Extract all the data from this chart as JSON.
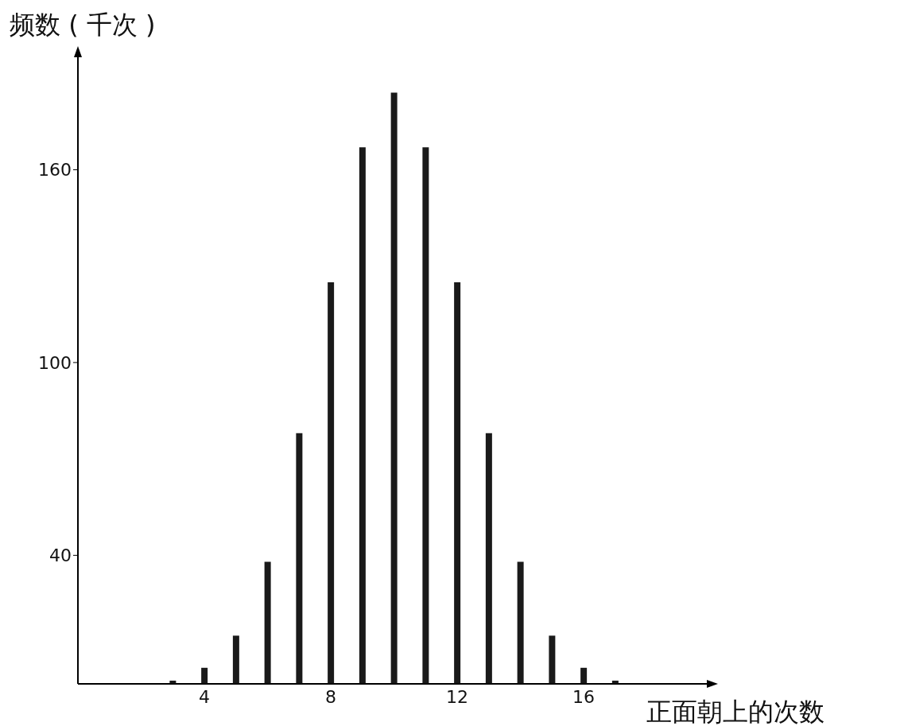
{
  "chart_data": {
    "type": "bar",
    "ylabel": "频数 ( 千次 )",
    "xlabel": "正面朝上的次数",
    "x": [
      3,
      4,
      5,
      6,
      7,
      8,
      9,
      10,
      11,
      12,
      13,
      14,
      15,
      16,
      17
    ],
    "values": [
      1,
      5,
      15,
      38,
      78,
      125,
      167,
      184,
      167,
      125,
      78,
      38,
      15,
      5,
      1
    ],
    "color": "#1a1a1a",
    "xlim": [
      0,
      20
    ],
    "xticks": [
      4,
      8,
      12,
      16
    ],
    "ylim": [
      0,
      196
    ],
    "yticks": [
      40,
      100,
      160
    ],
    "grid": false,
    "legend": false
  }
}
